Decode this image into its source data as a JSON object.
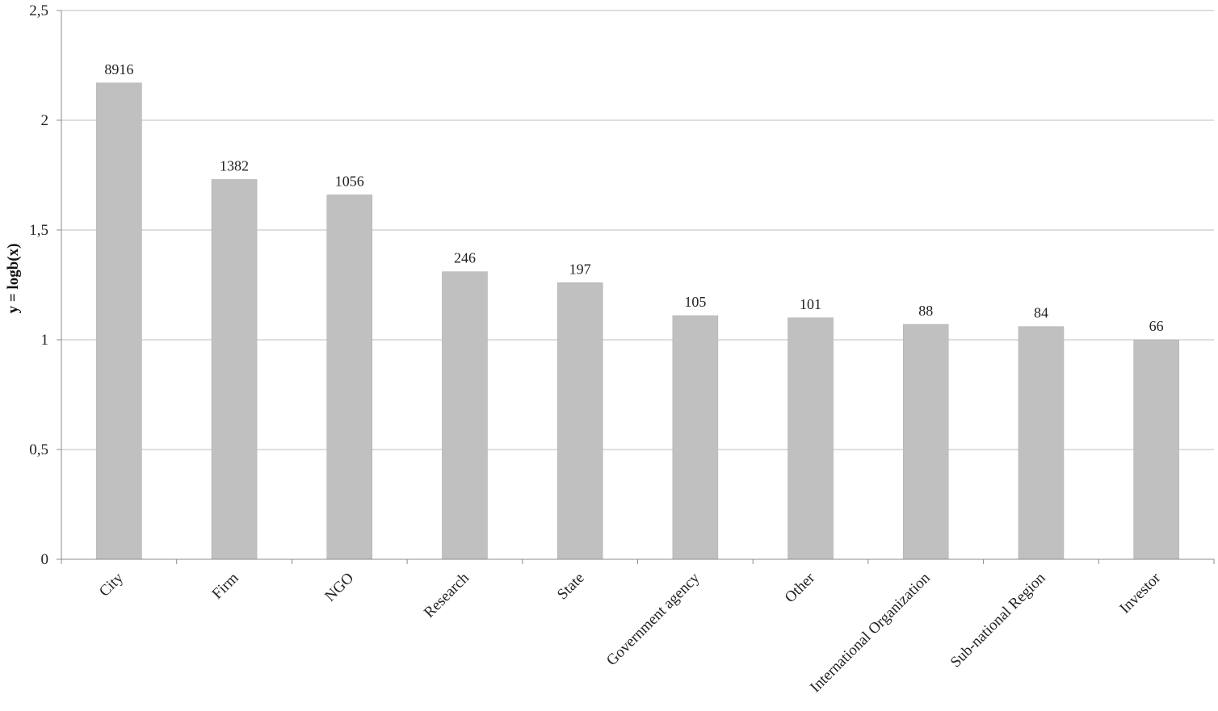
{
  "chart_data": {
    "type": "bar",
    "title": "",
    "xlabel": "",
    "ylabel": "y = logb(x)",
    "ylim": [
      0,
      2.5
    ],
    "yticks": [
      0,
      0.5,
      1,
      1.5,
      2,
      2.5
    ],
    "ytick_labels": [
      "0",
      "0,5",
      "1",
      "1,5",
      "2",
      "2,5"
    ],
    "grid": "horizontal",
    "legend": "none",
    "categories": [
      "City",
      "Firm",
      "NGO",
      "Research",
      "State",
      "Government agency",
      "Other",
      "International Organization",
      "Sub-national Region",
      "Investor"
    ],
    "values": [
      2.17,
      1.73,
      1.66,
      1.31,
      1.26,
      1.11,
      1.1,
      1.07,
      1.06,
      1.0
    ],
    "data_labels": [
      "8916",
      "1382",
      "1056",
      "246",
      "197",
      "105",
      "101",
      "88",
      "84",
      "66"
    ],
    "colors": {
      "bar": "#c0c0c0",
      "bar_edge": "#b3b3b3",
      "grid": "#bdbdbd",
      "axis": "#8c8c8c",
      "text": "#222222"
    }
  }
}
